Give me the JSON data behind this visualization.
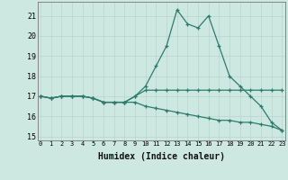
{
  "xlabel": "Humidex (Indice chaleur)",
  "x": [
    0,
    1,
    2,
    3,
    4,
    5,
    6,
    7,
    8,
    9,
    10,
    11,
    12,
    13,
    14,
    15,
    16,
    17,
    18,
    19,
    20,
    21,
    22,
    23
  ],
  "line1": [
    17.0,
    16.9,
    17.0,
    17.0,
    17.0,
    16.9,
    16.7,
    16.7,
    16.7,
    17.0,
    17.5,
    18.5,
    19.5,
    21.3,
    20.6,
    20.4,
    21.0,
    19.5,
    18.0,
    17.5,
    17.0,
    16.5,
    15.7,
    15.3
  ],
  "line2": [
    17.0,
    16.9,
    17.0,
    17.0,
    17.0,
    16.9,
    16.7,
    16.7,
    16.7,
    17.0,
    17.3,
    17.3,
    17.3,
    17.3,
    17.3,
    17.3,
    17.3,
    17.3,
    17.3,
    17.3,
    17.3,
    17.3,
    17.3,
    17.3
  ],
  "line3": [
    17.0,
    16.9,
    17.0,
    17.0,
    17.0,
    16.9,
    16.7,
    16.7,
    16.7,
    16.7,
    16.5,
    16.4,
    16.3,
    16.2,
    16.1,
    16.0,
    15.9,
    15.8,
    15.8,
    15.7,
    15.7,
    15.6,
    15.5,
    15.3
  ],
  "bg_color": "#cce8e0",
  "line_color": "#2e7b6e",
  "grid_color": "#b8d4cc",
  "ylim": [
    14.8,
    21.7
  ],
  "yticks": [
    15,
    16,
    17,
    18,
    19,
    20,
    21
  ],
  "xlim": [
    -0.3,
    23.3
  ]
}
